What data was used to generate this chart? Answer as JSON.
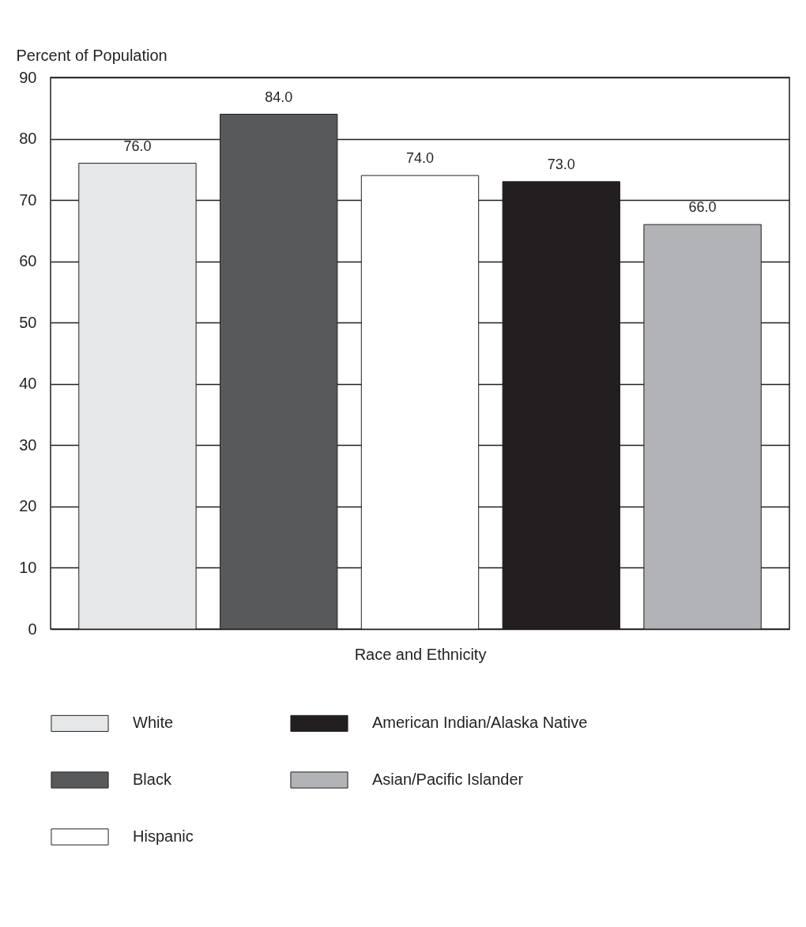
{
  "chart_data": {
    "type": "bar",
    "ylabel": "Percent of Population",
    "xlabel": "Race and Ethnicity",
    "categories": [
      null,
      null,
      null,
      null,
      null
    ],
    "series": [
      {
        "name": "White",
        "color": "#e6e7e8",
        "values": [
          76.0,
          null,
          null,
          null,
          null
        ],
        "value_labels": [
          "76.0",
          null,
          null,
          null,
          null
        ]
      },
      {
        "name": "Black",
        "color": "#58595b",
        "values": [
          null,
          84.0,
          null,
          null,
          null
        ],
        "value_labels": [
          null,
          "84.0",
          null,
          null,
          null
        ]
      },
      {
        "name": "Hispanic",
        "color": "#ffffff",
        "values": [
          null,
          null,
          74.0,
          null,
          null
        ],
        "value_labels": [
          null,
          null,
          "74.0",
          null,
          null
        ]
      },
      {
        "name": "American Indian/Alaska Native",
        "color": "#231f20",
        "values": [
          null,
          null,
          null,
          73.0,
          null
        ],
        "value_labels": [
          null,
          null,
          null,
          "73.0",
          null
        ]
      },
      {
        "name": "Asian/Pacific Islander",
        "color": "#b1b3b6",
        "values": [
          null,
          null,
          null,
          null,
          66.0
        ],
        "value_labels": [
          null,
          null,
          null,
          null,
          "66.0"
        ]
      }
    ],
    "ylim": [
      0,
      90
    ],
    "yticks": [
      0,
      10,
      20,
      30,
      40,
      50,
      60,
      70,
      80,
      90
    ],
    "grid": "y",
    "legend": "bottom",
    "tick_labels": "y"
  }
}
